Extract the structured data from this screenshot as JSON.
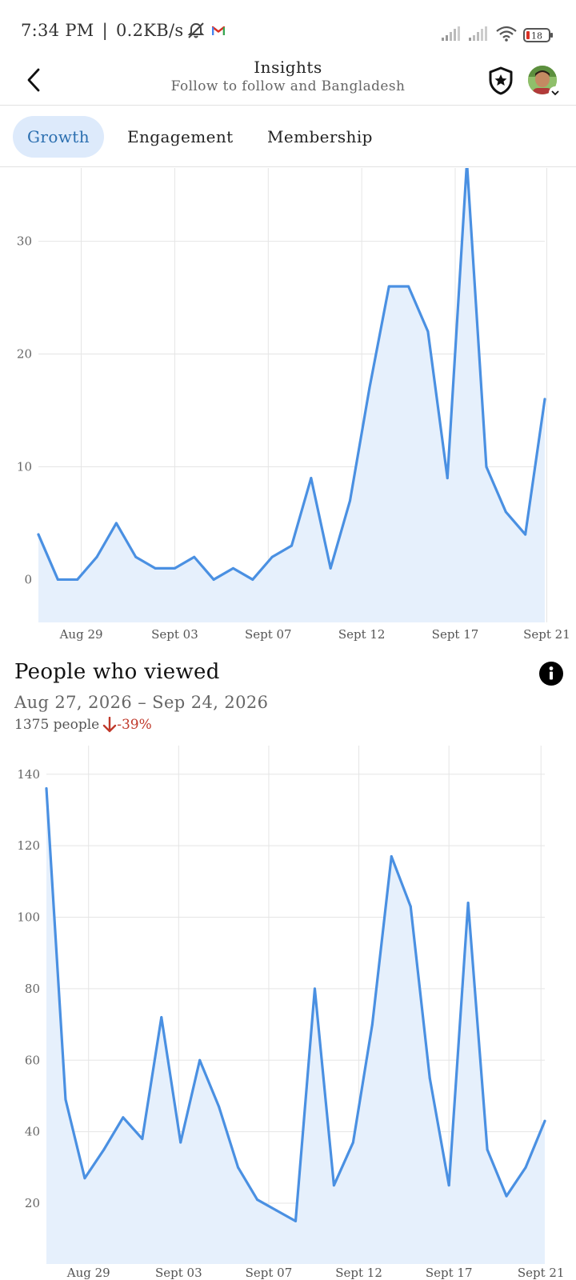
{
  "status_bar": {
    "time": "7:34 PM",
    "separator": "|",
    "network_speed": "0.2KB/s",
    "icons": [
      "mute-icon",
      "gmail-icon",
      "signal-icon",
      "signal-icon",
      "wifi-icon",
      "battery-icon"
    ],
    "battery_level": "18"
  },
  "header": {
    "title": "Insights",
    "subtitle": "Follow to follow and Bangladesh"
  },
  "tabs": [
    {
      "label": "Growth",
      "active": true
    },
    {
      "label": "Engagement",
      "active": false
    },
    {
      "label": "Membership",
      "active": false
    }
  ],
  "colors": {
    "accent": "#4a90e2",
    "area_fill": "#e6f0fc",
    "tab_active_bg": "#ddeafb",
    "tab_active_text": "#2b6fb0",
    "negative": "#c0392b"
  },
  "people_viewed": {
    "title": "People who viewed",
    "date_range": "Aug 27, 2026 – Sep 24, 2026",
    "count_text": "1375 people",
    "delta_text": "-39%"
  },
  "chart_data": [
    {
      "type": "area",
      "x_tick_labels": [
        "Aug 29",
        "Sept 03",
        "Sept 07",
        "Sept 12",
        "Sept 17",
        "Sept 21"
      ],
      "y_tick_labels": [
        "0",
        "10",
        "20",
        "30"
      ],
      "y_ticks": [
        0,
        10,
        20,
        30
      ],
      "ylim": [
        -3.8,
        36.5
      ],
      "grid": true,
      "series": [
        {
          "values": [
            4,
            0,
            0,
            2,
            5,
            2,
            1,
            1,
            2,
            0,
            1,
            0,
            2,
            3,
            9,
            1,
            7,
            17,
            26,
            26,
            22,
            9,
            37,
            10,
            6,
            4,
            16
          ]
        }
      ]
    },
    {
      "type": "area",
      "x_tick_labels": [
        "Aug 29",
        "Sept 03",
        "Sept 07",
        "Sept 12",
        "Sept 17",
        "Sept 21"
      ],
      "y_tick_labels": [
        "20",
        "40",
        "60",
        "80",
        "100",
        "120",
        "140"
      ],
      "y_ticks": [
        20,
        40,
        60,
        80,
        100,
        120,
        140
      ],
      "ylim": [
        3,
        148
      ],
      "grid": true,
      "series": [
        {
          "values": [
            136,
            49,
            27,
            35,
            44,
            38,
            72,
            37,
            60,
            47,
            30,
            21,
            18,
            15,
            80,
            25,
            37,
            70,
            117,
            103,
            55,
            25,
            104,
            35,
            22,
            30,
            43
          ]
        }
      ]
    }
  ]
}
